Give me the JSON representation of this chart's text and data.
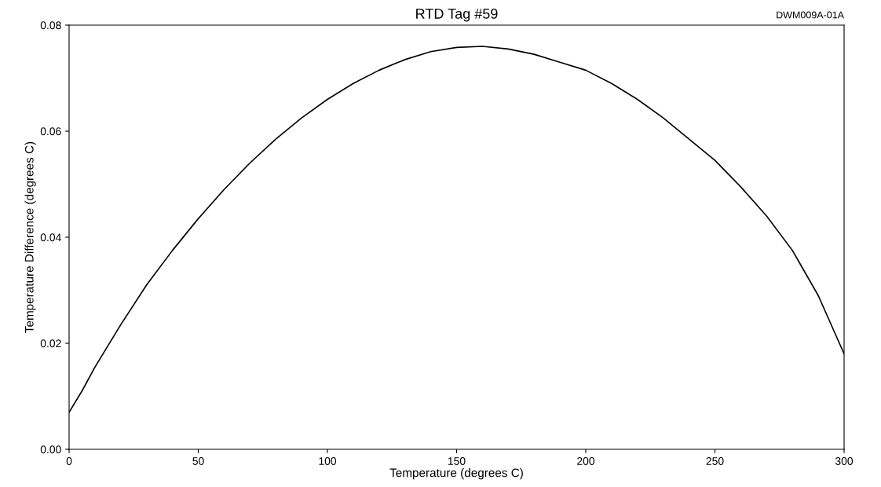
{
  "chart_data": {
    "type": "line",
    "title": "RTD Tag #59",
    "xlabel": "Temperature (degrees C)",
    "ylabel": "Temperature Difference (degrees C)",
    "annotations": [
      "DWM009A-01A"
    ],
    "x": [
      0,
      5,
      10,
      20,
      30,
      40,
      50,
      60,
      70,
      80,
      90,
      100,
      110,
      120,
      130,
      140,
      150,
      160,
      170,
      180,
      190,
      200,
      210,
      220,
      230,
      240,
      250,
      260,
      270,
      280,
      290,
      300
    ],
    "series": [
      {
        "color": "#000000",
        "values": [
          0.007,
          0.011,
          0.0155,
          0.0235,
          0.031,
          0.0375,
          0.0435,
          0.049,
          0.054,
          0.0585,
          0.0625,
          0.066,
          0.069,
          0.0715,
          0.0735,
          0.075,
          0.0758,
          0.076,
          0.0755,
          0.0745,
          0.073,
          0.0715,
          0.069,
          0.066,
          0.0625,
          0.0585,
          0.0545,
          0.0495,
          0.044,
          0.0375,
          0.029,
          0.018
        ]
      }
    ],
    "xlim": [
      0,
      300
    ],
    "xticks": [
      0,
      50,
      100,
      150,
      200,
      250,
      300
    ],
    "ylim": [
      0,
      0.08
    ],
    "yticks": [
      {
        "value": 0,
        "label": "0.00"
      },
      {
        "value": 0.02,
        "label": "0.02"
      },
      {
        "value": 0.04,
        "label": "0.04"
      },
      {
        "value": 0.06,
        "label": "0.06"
      },
      {
        "value": 0.08,
        "label": "0.08"
      }
    ],
    "grid": false,
    "marker": "none",
    "line_style": "solid"
  }
}
